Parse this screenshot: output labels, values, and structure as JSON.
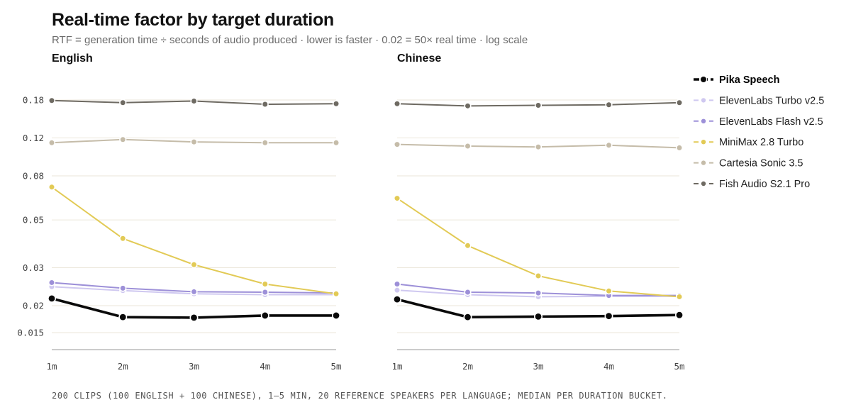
{
  "title": "Real-time factor by target duration",
  "subtitle": "RTF = generation time ÷ seconds of audio produced · lower is faster · 0.02 = 50× real time · log scale",
  "footnote": "200 CLIPS (100 ENGLISH + 100 CHINESE), 1–5 MIN, 20 REFERENCE SPEAKERS PER LANGUAGE; MEDIAN PER DURATION BUCKET.",
  "chart_data": {
    "type": "line",
    "yscale": "log",
    "ylim": [
      0.0135,
      0.195
    ],
    "yticks": [
      0.015,
      0.02,
      0.03,
      0.05,
      0.08,
      0.12,
      0.18
    ],
    "ytick_labels": [
      "0.015",
      "0.02",
      "0.03",
      "0.05",
      "0.08",
      "0.12",
      "0.18"
    ],
    "x": [
      "1m",
      "2m",
      "3m",
      "4m",
      "5m"
    ],
    "legend_position": "right",
    "grid": true,
    "panels": [
      {
        "title": "English",
        "series": [
          {
            "name": "Fish Audio S2.1 Pro",
            "color": "#6e6a62",
            "values": [
              0.179,
              0.175,
              0.178,
              0.172,
              0.173
            ]
          },
          {
            "name": "Cartesia Sonic 3.5",
            "color": "#c5bca9",
            "values": [
              0.114,
              0.118,
              0.115,
              0.114,
              0.114
            ]
          },
          {
            "name": "MiniMax 2.8 Turbo",
            "color": "#e2ca55",
            "values": [
              0.071,
              0.041,
              0.031,
              0.0252,
              0.0227
            ]
          },
          {
            "name": "ElevenLabs Flash v2.5",
            "color": "#9d90d8",
            "values": [
              0.0256,
              0.0241,
              0.0232,
              0.0231,
              0.0229
            ]
          },
          {
            "name": "ElevenLabs Turbo v2.5",
            "color": "#cfc8f0",
            "values": [
              0.0245,
              0.0235,
              0.0227,
              0.0225,
              0.0225
            ]
          },
          {
            "name": "Pika Speech",
            "color": "#0a0a0a",
            "values": [
              0.0216,
              0.0177,
              0.0176,
              0.018,
              0.018
            ]
          }
        ]
      },
      {
        "title": "Chinese",
        "series": [
          {
            "name": "Fish Audio S2.1 Pro",
            "color": "#6e6a62",
            "values": [
              0.173,
              0.169,
              0.17,
              0.171,
              0.175
            ]
          },
          {
            "name": "Cartesia Sonic 3.5",
            "color": "#c5bca9",
            "values": [
              0.112,
              0.11,
              0.109,
              0.111,
              0.108
            ]
          },
          {
            "name": "MiniMax 2.8 Turbo",
            "color": "#e2ca55",
            "values": [
              0.063,
              0.038,
              0.0275,
              0.0234,
              0.022
            ]
          },
          {
            "name": "ElevenLabs Flash v2.5",
            "color": "#9d90d8",
            "values": [
              0.0252,
              0.0231,
              0.0229,
              0.0223,
              0.0223
            ]
          },
          {
            "name": "ElevenLabs Turbo v2.5",
            "color": "#cfc8f0",
            "values": [
              0.0236,
              0.0225,
              0.022,
              0.0221,
              0.0221
            ]
          },
          {
            "name": "Pika Speech",
            "color": "#0a0a0a",
            "values": [
              0.0214,
              0.0177,
              0.0178,
              0.0179,
              0.0181
            ]
          }
        ]
      }
    ],
    "legend": [
      {
        "name": "Pika Speech",
        "color": "#0a0a0a",
        "bold": true
      },
      {
        "name": "ElevenLabs Turbo v2.5",
        "color": "#cfc8f0"
      },
      {
        "name": "ElevenLabs Flash v2.5",
        "color": "#9d90d8"
      },
      {
        "name": "MiniMax 2.8 Turbo",
        "color": "#e2ca55"
      },
      {
        "name": "Cartesia Sonic 3.5",
        "color": "#c5bca9"
      },
      {
        "name": "Fish Audio S2.1 Pro",
        "color": "#6e6a62"
      }
    ]
  }
}
